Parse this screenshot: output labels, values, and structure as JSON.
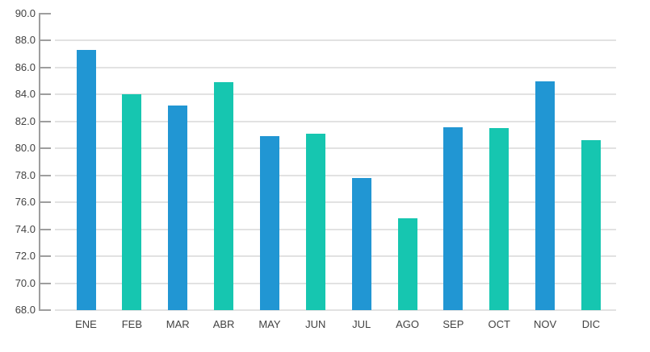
{
  "colors": {
    "blue_bar": "#2196D3",
    "teal_bar": "#16C6B0",
    "axis": "#9E9E9E",
    "grid": "#E2E2E2",
    "label_text": "#424242",
    "background": "#FFFFFF"
  },
  "chart_data": {
    "type": "bar",
    "title": "",
    "xlabel": "",
    "ylabel": "",
    "categories": [
      "ENE",
      "FEB",
      "MAR",
      "ABR",
      "MAY",
      "JUN",
      "JUL",
      "AGO",
      "SEP",
      "OCT",
      "NOV",
      "DIC"
    ],
    "values": [
      87.3,
      84.0,
      83.2,
      84.9,
      80.9,
      81.1,
      77.8,
      74.8,
      81.6,
      81.5,
      85.0,
      80.6
    ],
    "bar_colors": [
      "#2196D3",
      "#16C6B0",
      "#2196D3",
      "#16C6B0",
      "#2196D3",
      "#16C6B0",
      "#2196D3",
      "#16C6B0",
      "#2196D3",
      "#16C6B0",
      "#2196D3",
      "#16C6B0"
    ],
    "ylim": [
      68.0,
      90.0
    ],
    "ytick_step": 2.0,
    "ytick_labels": [
      "68.0",
      "70.0",
      "72.0",
      "74.0",
      "76.0",
      "78.0",
      "80.0",
      "82.0",
      "84.0",
      "86.0",
      "88.0",
      "90.0"
    ],
    "grid": true,
    "legend": false
  }
}
